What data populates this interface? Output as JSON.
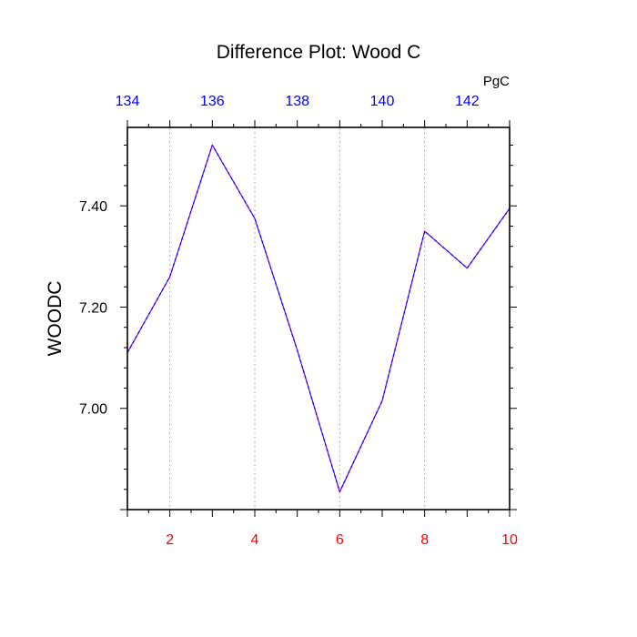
{
  "chart_data": {
    "type": "line",
    "title": "Difference Plot: Wood C",
    "units_label": "PgC",
    "ylabel": "WOODC",
    "xlabel": "",
    "x": [
      1,
      2,
      3,
      4,
      5,
      6,
      7,
      8,
      9,
      10
    ],
    "series": [
      {
        "values": [
          7.11,
          7.26,
          7.52,
          7.375,
          7.115,
          6.835,
          7.015,
          7.35,
          7.277,
          7.395
        ]
      }
    ],
    "xlim": [
      1,
      10
    ],
    "ylim": [
      6.8,
      7.555
    ],
    "x_ticks": [
      "2",
      "4",
      "6",
      "8",
      "10"
    ],
    "x_tick_values": [
      2,
      4,
      6,
      8,
      10
    ],
    "y_ticks": [
      "7.00",
      "7.20",
      "7.40"
    ],
    "y_tick_values": [
      7.0,
      7.2,
      7.4
    ],
    "top_axis_ticks": [
      "134",
      "136",
      "138",
      "140",
      "142"
    ],
    "top_axis_tick_values": [
      1,
      3,
      5,
      7,
      9
    ],
    "gridlines_x": [
      2,
      4,
      6,
      8
    ],
    "grid": "vertical dotted",
    "line_color": "#7a00d6",
    "line_accent_color": "#0000ff",
    "bottom_tick_color": "#ff0000",
    "top_tick_color": "#0000ff",
    "grid_color": "#b0b0b0"
  }
}
